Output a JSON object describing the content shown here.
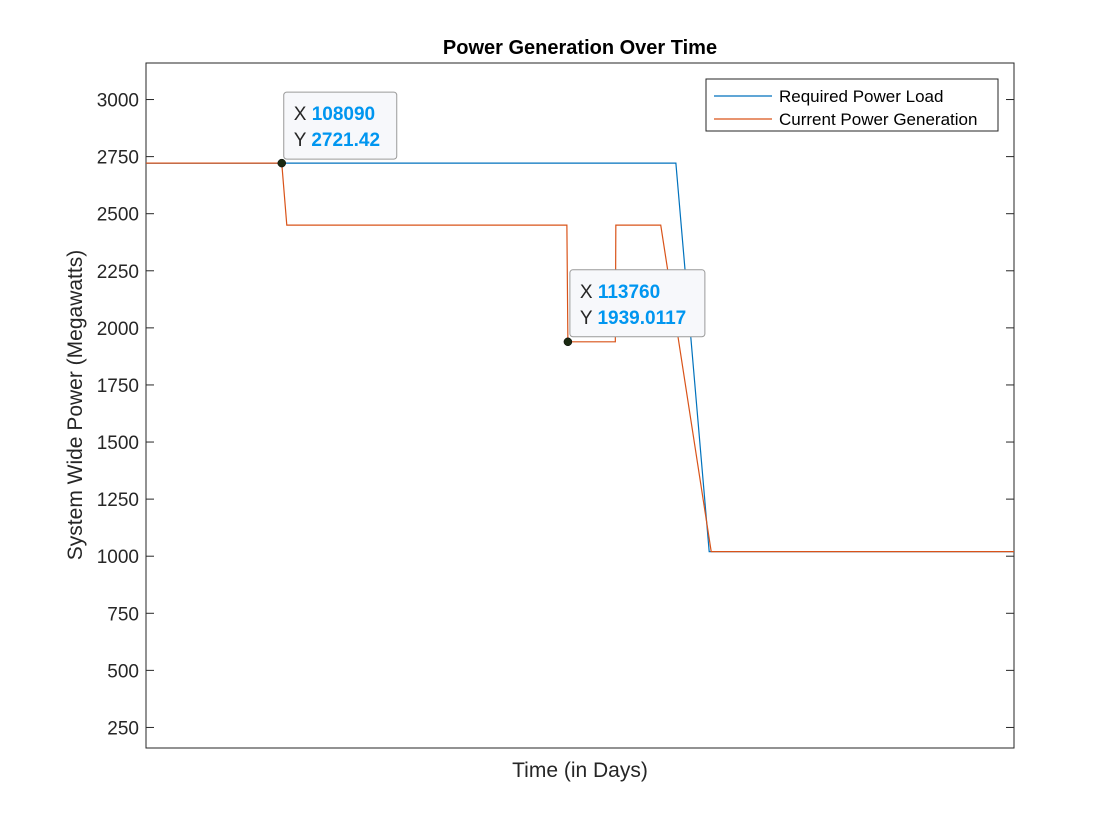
{
  "colors": {
    "required_load": "#0072BD",
    "current_generation": "#D95319",
    "datatip_value": "#0096F0",
    "axes": "#262626"
  },
  "chart_data": {
    "type": "line",
    "title": "Power Generation Over Time",
    "xlabel": "Time (in Days)",
    "ylabel": "System Wide Power (Megawatts)",
    "xlim": [
      105400,
      122600
    ],
    "ylim": [
      160,
      3160
    ],
    "x_ticks_visible": false,
    "y_ticks": [
      250,
      500,
      750,
      1000,
      1250,
      1500,
      1750,
      2000,
      2250,
      2500,
      2750,
      3000
    ],
    "y_tick_labels": [
      "250",
      "500",
      "750",
      "1000",
      "1250",
      "1500",
      "1750",
      "2000",
      "2250",
      "2500",
      "2750",
      "3000"
    ],
    "grid": false,
    "legend_position": "top-right",
    "series": [
      {
        "name": "Required Power Load",
        "color": "#0072BD",
        "x": [
          105400,
          115900,
          116560,
          122600
        ],
        "y": [
          2721.42,
          2721.42,
          1020,
          1020
        ]
      },
      {
        "name": "Current Power Generation",
        "color": "#D95319",
        "x": [
          105400,
          108090,
          108190,
          113740,
          113760,
          114700,
          114710,
          115600,
          116600,
          122600
        ],
        "y": [
          2721.42,
          2721.42,
          2450,
          2450,
          1939.0117,
          1939.0117,
          2450,
          2450,
          1020,
          1020
        ]
      }
    ],
    "datatips": [
      {
        "x_key": "X",
        "y_key": "Y",
        "x_label": "108090",
        "y_label": "2721.42",
        "x": 108090,
        "y": 2721.42
      },
      {
        "x_key": "X",
        "y_key": "Y",
        "x_label": "113760",
        "y_label": "1939.0117",
        "x": 113760,
        "y": 1939.0117
      }
    ]
  }
}
